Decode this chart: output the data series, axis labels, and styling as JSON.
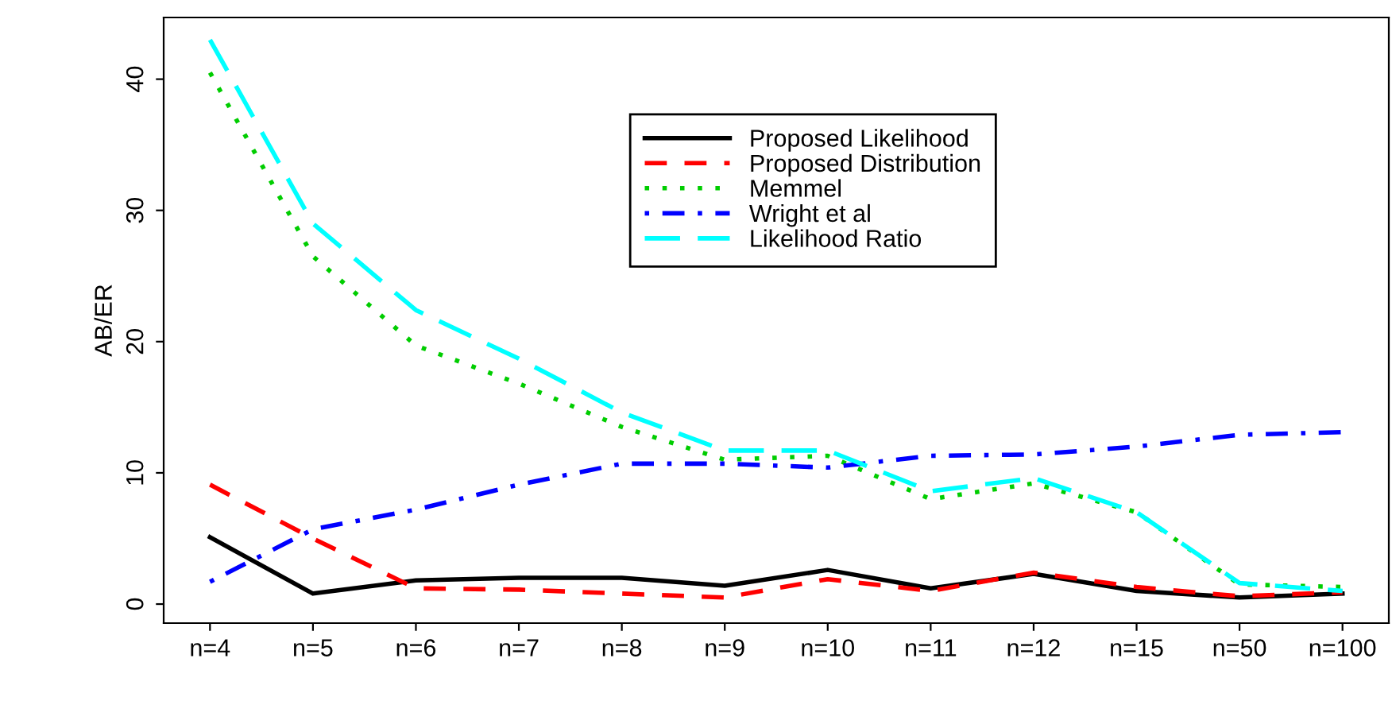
{
  "chart_data": {
    "type": "line",
    "ylabel": "AB/ER",
    "categories": [
      "n=4",
      "n=5",
      "n=6",
      "n=7",
      "n=8",
      "n=9",
      "n=10",
      "n=11",
      "n=12",
      "n=15",
      "n=50",
      "n=100"
    ],
    "ylim": [
      -1.45,
      44.7
    ],
    "yticks": [
      0,
      10,
      20,
      30,
      40
    ],
    "grid": false,
    "legend": "top",
    "marker": "none",
    "series": [
      {
        "name": "Proposed Likelihood",
        "color": "#000000",
        "line_style": "solid",
        "values": [
          5.1,
          0.8,
          1.8,
          2.0,
          2.0,
          1.4,
          2.6,
          1.2,
          2.3,
          1.0,
          0.5,
          0.8
        ]
      },
      {
        "name": "Proposed Distribution",
        "color": "#ff0000",
        "line_style": "dashed",
        "values": [
          9.1,
          5.0,
          1.2,
          1.1,
          0.8,
          0.5,
          1.9,
          1.0,
          2.4,
          1.3,
          0.6,
          0.9
        ]
      },
      {
        "name": "Memmel",
        "color": "#00cd00",
        "line_style": "dotted",
        "values": [
          40.5,
          26.5,
          19.7,
          16.8,
          13.5,
          11.0,
          11.3,
          8.0,
          9.2,
          7.0,
          1.5,
          1.3
        ]
      },
      {
        "name": "Wright et al",
        "color": "#0000ff",
        "line_style": "dashdot",
        "values": [
          1.7,
          5.7,
          7.2,
          9.1,
          10.7,
          10.7,
          10.4,
          11.3,
          11.4,
          12.0,
          12.9,
          13.1
        ]
      },
      {
        "name": "Likelihood Ratio",
        "color": "#00ffff",
        "line_style": "longdash",
        "values": [
          43.0,
          29.0,
          22.4,
          18.7,
          14.6,
          11.7,
          11.7,
          8.6,
          9.6,
          7.0,
          1.6,
          1.0
        ]
      }
    ]
  }
}
